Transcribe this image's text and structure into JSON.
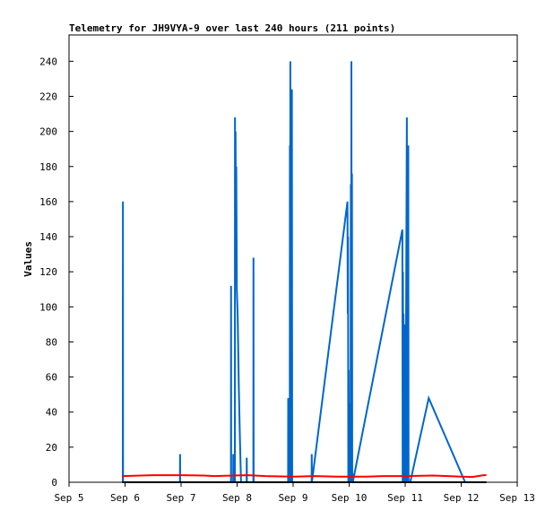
{
  "chart_data": {
    "type": "line",
    "title": "Telemetry for JH9VYA-9 over last 240 hours (211 points)",
    "xlabel": "",
    "ylabel": "Values",
    "x_tick_labels": [
      "Sep 5",
      "Sep 6",
      "Sep 7",
      "Sep 8",
      "Sep 9",
      "Sep 10",
      "Sep 11",
      "Sep 12",
      "Sep 13"
    ],
    "x_range_days": [
      5,
      13
    ],
    "ylim": [
      0,
      255
    ],
    "y_ticks": [
      0,
      20,
      40,
      60,
      80,
      100,
      120,
      140,
      160,
      180,
      200,
      220,
      240
    ],
    "grid": false,
    "legend": "none",
    "series": [
      {
        "color": "#0066cc",
        "points": [
          [
            5.96,
            0
          ],
          [
            5.962,
            160
          ],
          [
            5.964,
            0
          ],
          [
            6.98,
            0
          ],
          [
            6.982,
            16
          ],
          [
            6.984,
            0
          ],
          [
            7.89,
            0
          ],
          [
            7.892,
            112
          ],
          [
            7.894,
            0
          ],
          [
            7.93,
            0
          ],
          [
            7.932,
            16
          ],
          [
            7.934,
            0
          ],
          [
            7.96,
            0
          ],
          [
            7.962,
            208
          ],
          [
            7.966,
            120
          ],
          [
            7.972,
            200
          ],
          [
            7.978,
            150
          ],
          [
            7.985,
            180
          ],
          [
            7.995,
            110
          ],
          [
            8.01,
            95
          ],
          [
            8.03,
            55
          ],
          [
            8.05,
            25
          ],
          [
            8.07,
            0
          ],
          [
            8.17,
            0
          ],
          [
            8.172,
            14
          ],
          [
            8.175,
            0
          ],
          [
            8.29,
            0
          ],
          [
            8.292,
            128
          ],
          [
            8.295,
            0
          ],
          [
            8.91,
            0
          ],
          [
            8.912,
            48
          ],
          [
            8.915,
            0
          ],
          [
            8.94,
            0
          ],
          [
            8.942,
            192
          ],
          [
            8.946,
            5
          ],
          [
            8.95,
            240
          ],
          [
            8.955,
            0
          ],
          [
            8.975,
            0
          ],
          [
            8.978,
            224
          ],
          [
            8.983,
            0
          ],
          [
            9.33,
            0
          ],
          [
            9.332,
            16
          ],
          [
            9.335,
            0
          ],
          [
            9.97,
            160
          ],
          [
            9.975,
            96
          ],
          [
            9.98,
            140
          ],
          [
            9.985,
            0
          ],
          [
            9.99,
            64
          ],
          [
            9.995,
            0
          ],
          [
            10.0,
            45
          ],
          [
            10.005,
            0
          ],
          [
            10.01,
            24
          ],
          [
            10.015,
            0
          ],
          [
            10.02,
            18
          ],
          [
            10.025,
            0
          ],
          [
            10.03,
            170
          ],
          [
            10.035,
            0
          ],
          [
            10.04,
            240
          ],
          [
            10.045,
            0
          ],
          [
            10.05,
            176
          ],
          [
            10.055,
            0
          ],
          [
            10.06,
            5
          ],
          [
            10.065,
            0
          ],
          [
            10.95,
            144
          ],
          [
            10.955,
            0
          ],
          [
            10.96,
            120
          ],
          [
            10.965,
            0
          ],
          [
            10.97,
            96
          ],
          [
            10.975,
            0
          ],
          [
            10.98,
            30
          ],
          [
            10.985,
            0
          ],
          [
            10.99,
            90
          ],
          [
            10.995,
            0
          ],
          [
            11.0,
            16
          ],
          [
            11.005,
            0
          ],
          [
            11.03,
            208
          ],
          [
            11.035,
            0
          ],
          [
            11.05,
            0
          ],
          [
            11.055,
            192
          ],
          [
            11.06,
            0
          ],
          [
            11.09,
            0
          ],
          [
            11.42,
            48
          ],
          [
            12.07,
            0
          ]
        ]
      },
      {
        "color": "#ff0000",
        "points": [
          [
            5.95,
            3.5
          ],
          [
            6.5,
            4
          ],
          [
            7.0,
            4
          ],
          [
            7.4,
            3.8
          ],
          [
            7.6,
            3.5
          ],
          [
            7.9,
            3.8
          ],
          [
            8.2,
            4
          ],
          [
            8.5,
            3.5
          ],
          [
            9.0,
            3.2
          ],
          [
            9.4,
            3.5
          ],
          [
            9.8,
            3.2
          ],
          [
            10.3,
            3.2
          ],
          [
            10.6,
            3.5
          ],
          [
            11.0,
            3.5
          ],
          [
            11.5,
            3.8
          ],
          [
            12.0,
            3.2
          ],
          [
            12.2,
            3
          ],
          [
            12.4,
            4
          ],
          [
            12.45,
            4
          ]
        ]
      },
      {
        "color": "#000000",
        "points": [
          [
            5.95,
            0
          ],
          [
            12.45,
            0
          ]
        ]
      }
    ]
  }
}
